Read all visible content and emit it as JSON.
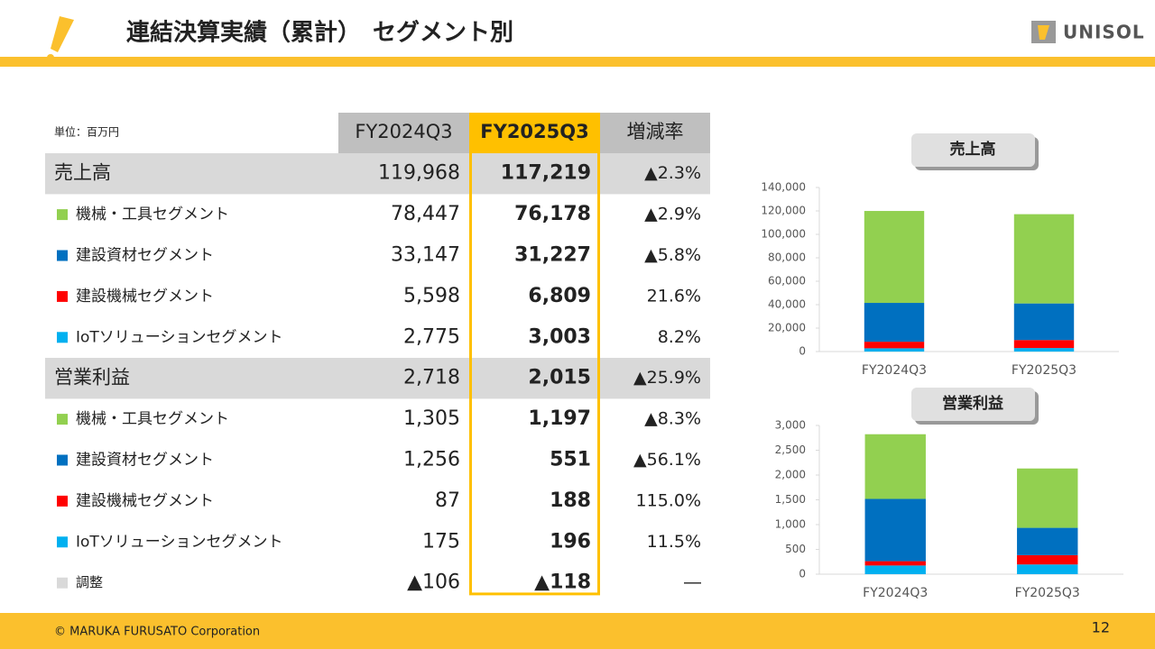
{
  "header": {
    "title": "連結決算実績（累計）　セグメント別",
    "logo": "UNISOL"
  },
  "table": {
    "unit": "単位：百万円",
    "columns": [
      "FY2024Q3",
      "FY2025Q3",
      "増減率"
    ],
    "rows": [
      {
        "label": "売上高",
        "values": [
          "119,968",
          "117,219",
          "▲2.3%"
        ]
      },
      {
        "label": "機械・工具セグメント",
        "marker": "#92d050",
        "values": [
          "78,447",
          "76,178",
          "▲2.9%"
        ]
      },
      {
        "label": "建設資材セグメント",
        "marker": "#0070c0",
        "values": [
          "33,147",
          "31,227",
          "▲5.8%"
        ]
      },
      {
        "label": "建設機械セグメント",
        "marker": "#ff0000",
        "values": [
          "5,598",
          "6,809",
          "21.6%"
        ]
      },
      {
        "label": "IoTソリューションセグメント",
        "marker": "#00b0f0",
        "values": [
          "2,775",
          "3,003",
          "8.2%"
        ]
      },
      {
        "label": "営業利益",
        "values": [
          "2,718",
          "2,015",
          "▲25.9%"
        ]
      },
      {
        "label": "機械・工具セグメント",
        "marker": "#92d050",
        "values": [
          "1,305",
          "1,197",
          "▲8.3%"
        ]
      },
      {
        "label": "建設資材セグメント",
        "marker": "#0070c0",
        "values": [
          "1,256",
          "551",
          "▲56.1%"
        ]
      },
      {
        "label": "建設機械セグメント",
        "marker": "#ff0000",
        "values": [
          "87",
          "188",
          "115.0%"
        ]
      },
      {
        "label": "IoTソリューションセグメント",
        "marker": "#00b0f0",
        "values": [
          "175",
          "196",
          "11.5%"
        ]
      },
      {
        "label": "調整",
        "marker": "#d9d9d9",
        "values": [
          "▲106",
          "▲118",
          "―"
        ]
      }
    ]
  },
  "chart_data": [
    {
      "type": "bar",
      "stacked": true,
      "title": "売上高",
      "categories": [
        "FY2024Q3",
        "FY2025Q3"
      ],
      "series": [
        {
          "color": "#00b0f0",
          "values": [
            2775,
            3003
          ]
        },
        {
          "color": "#ff0000",
          "values": [
            5598,
            6809
          ]
        },
        {
          "color": "#0070c0",
          "values": [
            33147,
            31227
          ]
        },
        {
          "color": "#92d050",
          "values": [
            78447,
            76178
          ]
        }
      ],
      "ylim": [
        0,
        140000
      ],
      "yticks": [
        0,
        {
          "value": 20000,
          "label": "20,000"
        },
        {
          "value": 40000,
          "label": "40,000"
        },
        {
          "value": 60000,
          "label": "60,000"
        },
        {
          "value": 80000,
          "label": "80,000"
        },
        {
          "value": 100000,
          "label": "100,000"
        },
        {
          "value": 120000,
          "label": "120,000"
        },
        {
          "value": 140000,
          "label": "140,000"
        }
      ],
      "grid": false
    },
    {
      "type": "bar",
      "stacked": true,
      "title": "営業利益",
      "categories": [
        "FY2024Q3",
        "FY2025Q3"
      ],
      "series": [
        {
          "color": "#00b0f0",
          "values": [
            175,
            196
          ]
        },
        {
          "color": "#ff0000",
          "values": [
            87,
            188
          ]
        },
        {
          "color": "#0070c0",
          "values": [
            1256,
            551
          ]
        },
        {
          "color": "#92d050",
          "values": [
            1305,
            1197
          ]
        }
      ],
      "ylim": [
        0,
        3000
      ],
      "yticks": [
        0,
        500,
        {
          "value": 1000,
          "label": "1,000"
        },
        {
          "value": 1500,
          "label": "1,500"
        },
        {
          "value": 2000,
          "label": "2,000"
        },
        {
          "value": 2500,
          "label": "2,500"
        },
        {
          "value": 3000,
          "label": "3,000"
        }
      ],
      "grid": false
    }
  ],
  "footer": {
    "copyright": "© MARUKA FURUSATO Corporation",
    "page": "12"
  }
}
